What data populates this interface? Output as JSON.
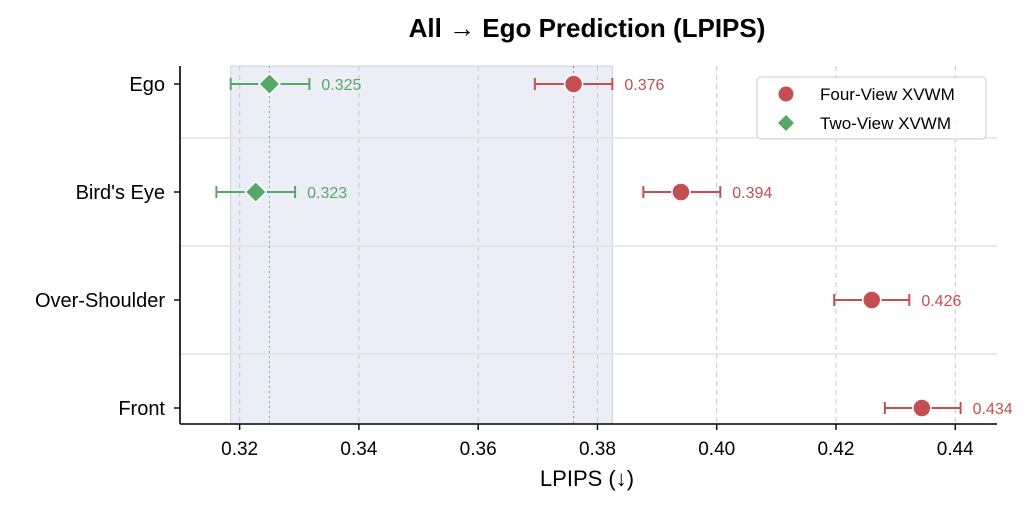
{
  "chart_data": {
    "type": "scatter",
    "title": "All → Ego Prediction (LPIPS)",
    "xlabel": "LPIPS (↓)",
    "ylabel": "",
    "xlim": [
      0.31,
      0.447
    ],
    "xticks": [
      0.32,
      0.34,
      0.36,
      0.38,
      0.4,
      0.42,
      0.44
    ],
    "xtick_labels": [
      "0.32",
      "0.34",
      "0.36",
      "0.38",
      "0.40",
      "0.42",
      "0.44"
    ],
    "categories": [
      "Ego",
      "Bird's Eye",
      "Over-Shoulder",
      "Front"
    ],
    "grid": "vertical dashed",
    "legend_position": "top-right",
    "shaded_band": [
      0.3185,
      0.3825
    ],
    "series": [
      {
        "name": "Four-View XVWM",
        "marker": "circle",
        "color": "#c44e52",
        "points": [
          {
            "category": "Ego",
            "value": 0.376,
            "err_low": 0.3695,
            "err_high": 0.3825,
            "label": "0.376"
          },
          {
            "category": "Bird's Eye",
            "value": 0.394,
            "err_low": 0.3877,
            "err_high": 0.4006,
            "label": "0.394"
          },
          {
            "category": "Over-Shoulder",
            "value": 0.426,
            "err_low": 0.4197,
            "err_high": 0.4323,
            "label": "0.426"
          },
          {
            "category": "Front",
            "value": 0.4344,
            "err_low": 0.4282,
            "err_high": 0.4409,
            "label": "0.434"
          }
        ]
      },
      {
        "name": "Two-View XVWM",
        "marker": "diamond",
        "color": "#55a868",
        "points": [
          {
            "category": "Ego",
            "value": 0.325,
            "err_low": 0.3185,
            "err_high": 0.3317,
            "label": "0.325"
          },
          {
            "category": "Bird's Eye",
            "value": 0.3227,
            "err_low": 0.3161,
            "err_high": 0.3293,
            "label": "0.323"
          }
        ]
      }
    ]
  }
}
